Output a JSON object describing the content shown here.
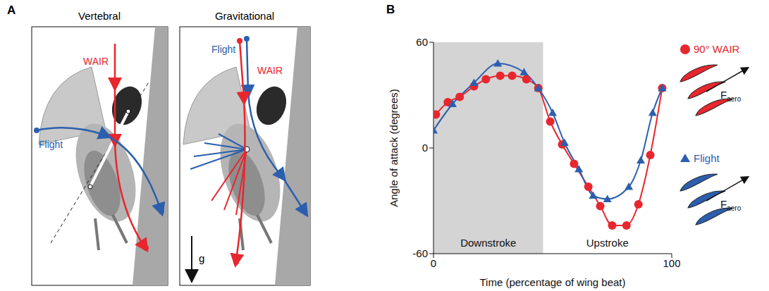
{
  "letters": [
    "A",
    "B"
  ],
  "panel_a": {
    "panels": [
      {
        "title": "Vertebral",
        "labels": {
          "wair": "WAIR",
          "flight": "Flight"
        }
      },
      {
        "title": "Gravitational",
        "labels": {
          "wair": "WAIR",
          "flight": "Flight"
        },
        "gravity": "g"
      }
    ]
  },
  "chart_data": {
    "type": "line",
    "x_label": "Time (percentage of wing beat)",
    "y_label": "Angle of attack (degrees)",
    "xlim": [
      0,
      100
    ],
    "xticks": [
      0,
      100
    ],
    "ylim": [
      -60,
      60
    ],
    "yticks": [
      -60,
      0,
      60
    ],
    "grid": false,
    "legend": "right",
    "regions": [
      {
        "label": "Downstroke",
        "x": [
          0,
          46
        ],
        "shaded": true
      },
      {
        "label": "Upstroke",
        "x": [
          46,
          100
        ],
        "shaded": false
      }
    ],
    "series": [
      {
        "name": "90° WAIR",
        "color": "#e8262e",
        "marker": "circle",
        "x": [
          1,
          6,
          11,
          17,
          22,
          28,
          33,
          39,
          44,
          49,
          54,
          59,
          65,
          70,
          75,
          81,
          86,
          91,
          96
        ],
        "values": [
          19,
          26,
          29,
          35,
          39,
          41,
          41,
          39,
          34,
          15,
          2,
          -9,
          -22,
          -33,
          -44,
          -44,
          -32,
          -4,
          34
        ]
      },
      {
        "name": "Flight",
        "color": "#2b5fae",
        "marker": "triangle",
        "x": [
          0,
          8,
          17,
          27,
          38,
          44,
          50,
          55,
          61,
          67,
          73,
          82,
          87,
          92,
          96
        ],
        "values": [
          10,
          25,
          37,
          48,
          43,
          34,
          20,
          3,
          -12,
          -27,
          -29,
          -22,
          -7,
          20,
          34
        ]
      }
    ],
    "annotations": [
      {
        "text": "F",
        "subscript": "aero"
      }
    ]
  }
}
